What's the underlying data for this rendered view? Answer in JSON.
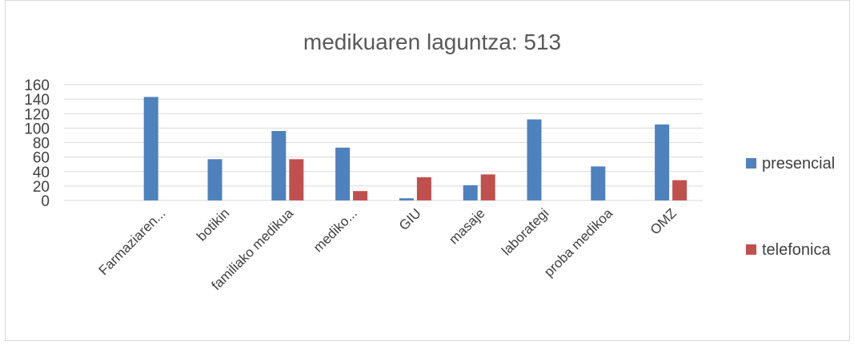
{
  "chart_data": {
    "type": "bar",
    "title": "medikuaren laguntza: 513",
    "categories": [
      null,
      "Farmaziaren...",
      "botikin",
      "familiako medikua",
      "mediko...",
      "GIU",
      "masaje",
      "laborategi",
      "proba medikoa",
      "OMZ"
    ],
    "series": [
      {
        "name": "presencial",
        "color": "#4f81bd",
        "values": [
          null,
          143,
          57,
          96,
          73,
          3,
          21,
          112,
          47,
          105
        ]
      },
      {
        "name": "telefonica",
        "color": "#c0504d",
        "values": [
          null,
          0,
          0,
          57,
          13,
          32,
          36,
          0,
          0,
          28
        ]
      }
    ],
    "ylim": [
      0,
      160
    ],
    "yticks": [
      0,
      20,
      40,
      60,
      80,
      100,
      120,
      140,
      160
    ],
    "grid": true,
    "legend": "right"
  }
}
